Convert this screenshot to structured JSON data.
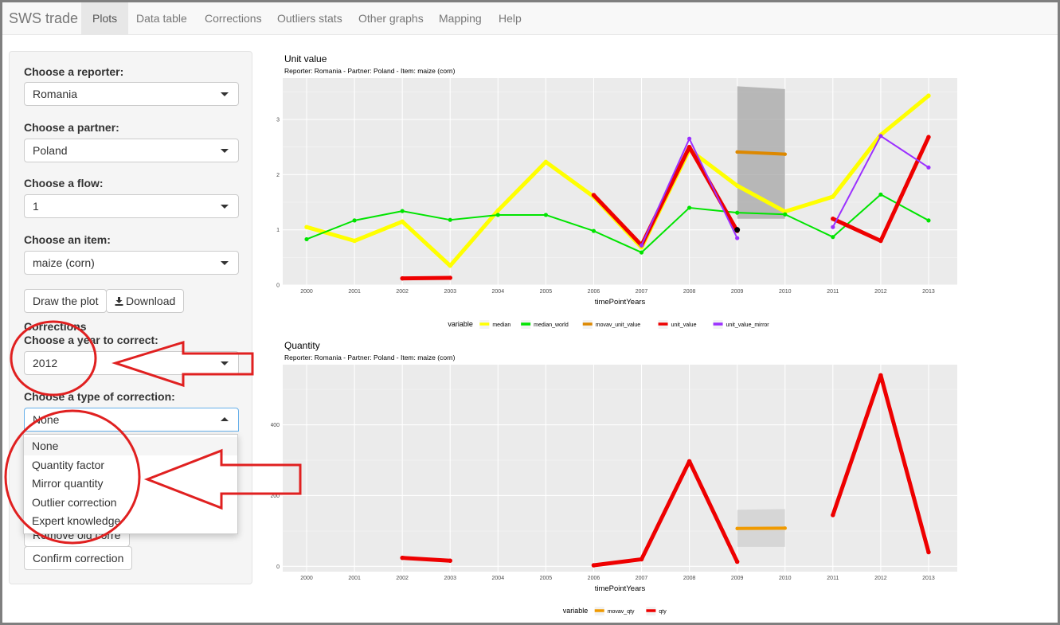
{
  "navbar": {
    "brand": "SWS trade",
    "tabs": [
      {
        "label": "Plots",
        "active": true
      },
      {
        "label": "Data table"
      },
      {
        "label": "Corrections"
      },
      {
        "label": "Outliers stats"
      },
      {
        "label": "Other graphs"
      },
      {
        "label": "Mapping"
      },
      {
        "label": "Help"
      }
    ]
  },
  "sidebar": {
    "reporter_label": "Choose a reporter:",
    "reporter_value": "Romania",
    "partner_label": "Choose a partner:",
    "partner_value": "Poland",
    "flow_label": "Choose a flow:",
    "flow_value": "1",
    "item_label": "Choose an item:",
    "item_value": "maize (corn)",
    "draw_button": "Draw the plot",
    "download_button": "Download",
    "corrections_heading": "Corrections",
    "year_label": "Choose a year to correct:",
    "year_value": "2012",
    "type_label": "Choose a type of correction:",
    "type_value": "None",
    "type_options": [
      "None",
      "Quantity factor",
      "Mirror quantity",
      "Outlier correction",
      "Expert knowledge"
    ],
    "remove_button": "Remove old corre",
    "confirm_button": "Confirm correction"
  },
  "colors": {
    "median": "#ffff00",
    "median_world": "#00e400",
    "movav": "#f09a00",
    "unit_value": "#ee0000",
    "mirror": "#9b30ff",
    "annotation": "#e02020"
  },
  "chart_data": [
    {
      "type": "line",
      "title": "Unit value",
      "subtitle": "Reporter: Romania - Partner: Poland - Item: maize (corn)",
      "xlabel": "timePointYears",
      "ylabel": "",
      "xlim": [
        1999.5,
        2013.6
      ],
      "ylim": [
        0,
        3.75
      ],
      "y_ticks": [
        0,
        1,
        2,
        3
      ],
      "x_ticks": [
        2000,
        2001,
        2002,
        2003,
        2004,
        2005,
        2006,
        2007,
        2008,
        2009,
        2010,
        2011,
        2012,
        2013
      ],
      "legend_title": "variable",
      "legend_position": "bottom",
      "series": [
        {
          "name": "median",
          "color": "#ffff00",
          "width": 5,
          "points": [
            [
              2000,
              1.05
            ],
            [
              2001,
              0.8
            ],
            [
              2002,
              1.15
            ],
            [
              2003,
              0.35
            ],
            [
              2004,
              1.35
            ],
            [
              2005,
              2.23
            ],
            [
              2006,
              1.6
            ],
            [
              2007,
              0.68
            ],
            [
              2008,
              2.45
            ],
            [
              2009,
              1.8
            ],
            [
              2010,
              1.33
            ],
            [
              2011,
              1.6
            ],
            [
              2012,
              2.72
            ],
            [
              2013,
              3.43
            ]
          ]
        },
        {
          "name": "median_world",
          "color": "#00e400",
          "width": 2,
          "markers": true,
          "points": [
            [
              2000,
              0.83
            ],
            [
              2001,
              1.17
            ],
            [
              2002,
              1.34
            ],
            [
              2003,
              1.18
            ],
            [
              2004,
              1.27
            ],
            [
              2005,
              1.27
            ],
            [
              2006,
              0.98
            ],
            [
              2007,
              0.59
            ],
            [
              2008,
              1.4
            ],
            [
              2009,
              1.31
            ],
            [
              2010,
              1.28
            ],
            [
              2011,
              0.87
            ],
            [
              2012,
              1.64
            ],
            [
              2013,
              1.17
            ]
          ]
        },
        {
          "name": "movav_unit_value",
          "color": "#dd8800",
          "width": 4,
          "points": [
            [
              2009,
              2.41
            ],
            [
              2010,
              2.37
            ]
          ]
        },
        {
          "name": "unit_value",
          "color": "#ee0000",
          "width": 5,
          "segments": [
            [
              [
                2002,
                0.12
              ],
              [
                2003,
                0.13
              ]
            ],
            [
              [
                2006,
                1.63
              ],
              [
                2007,
                0.72
              ],
              [
                2008,
                2.5
              ],
              [
                2009,
                0.98
              ]
            ],
            [
              [
                2011,
                1.2
              ],
              [
                2012,
                0.8
              ],
              [
                2013,
                2.68
              ]
            ]
          ]
        },
        {
          "name": "unit_value_mirror",
          "color": "#9b30ff",
          "width": 2,
          "markers": true,
          "segments": [
            [
              [
                2007,
                0.72
              ],
              [
                2008,
                2.65
              ],
              [
                2009,
                0.85
              ]
            ],
            [
              [
                2011,
                1.05
              ],
              [
                2012,
                2.7
              ],
              [
                2013,
                2.13
              ]
            ]
          ]
        }
      ],
      "band": {
        "x": [
          2009,
          2010
        ],
        "y_low": [
          1.2,
          1.2
        ],
        "y_high": [
          3.6,
          3.55
        ]
      },
      "point": {
        "x": 2009,
        "y": 1.0,
        "color": "#000000"
      }
    },
    {
      "type": "line",
      "title": "Quantity",
      "subtitle": "Reporter: Romania - Partner: Poland - Item: maize (corn)",
      "xlabel": "timePointYears",
      "ylabel": "",
      "xlim": [
        1999.5,
        2013.6
      ],
      "ylim": [
        -15,
        570
      ],
      "y_ticks": [
        0,
        200,
        400
      ],
      "x_ticks": [
        2000,
        2001,
        2002,
        2003,
        2004,
        2005,
        2006,
        2007,
        2008,
        2009,
        2010,
        2011,
        2012,
        2013
      ],
      "legend_title": "variable",
      "legend_position": "bottom",
      "series": [
        {
          "name": "movav_qty",
          "color": "#f09a00",
          "width": 4,
          "points": [
            [
              2009,
              107
            ],
            [
              2010,
              108
            ]
          ]
        },
        {
          "name": "qty",
          "color": "#ee0000",
          "width": 5,
          "segments": [
            [
              [
                2002,
                24
              ],
              [
                2003,
                16
              ]
            ],
            [
              [
                2006,
                3
              ],
              [
                2007,
                20
              ],
              [
                2008,
                297
              ],
              [
                2009,
                13
              ]
            ],
            [
              [
                2011,
                145
              ],
              [
                2012,
                540
              ],
              [
                2013,
                40
              ]
            ]
          ]
        }
      ],
      "band": {
        "x": [
          2009,
          2010
        ],
        "y_low": [
          55,
          55
        ],
        "y_high": [
          160,
          162
        ]
      }
    }
  ]
}
